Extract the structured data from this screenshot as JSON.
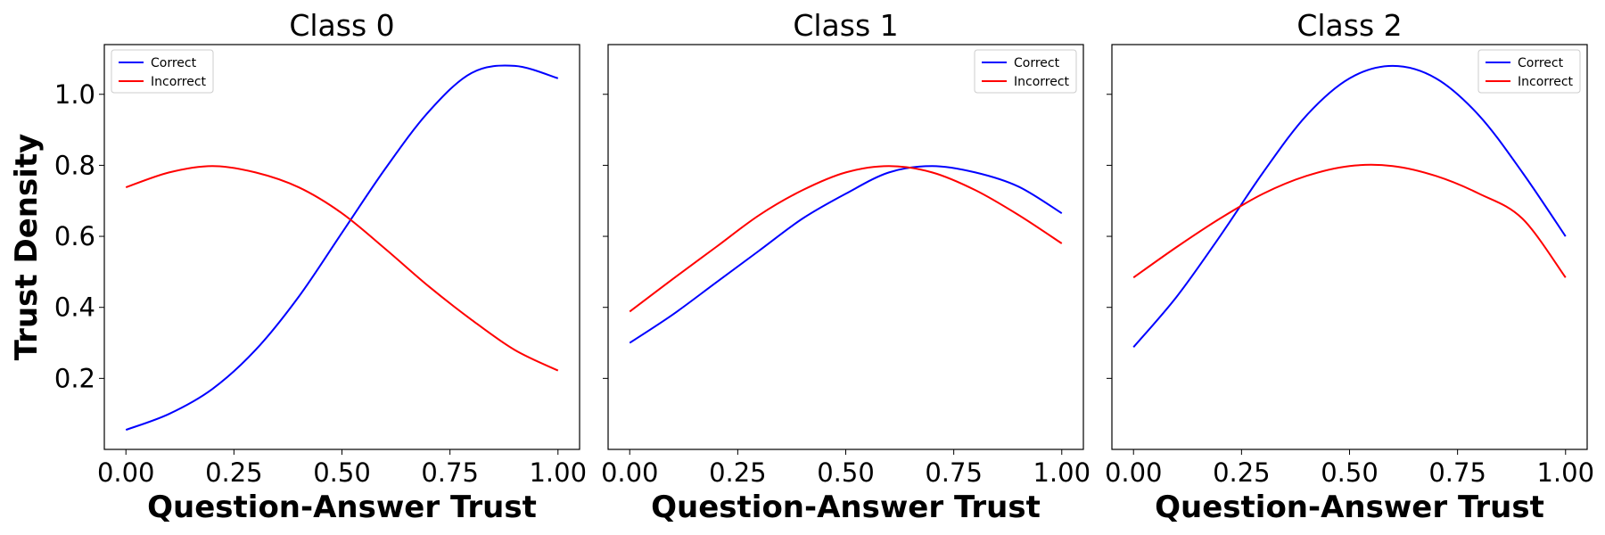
{
  "ylabel": "Trust Density",
  "colors": {
    "correct": "#0000ff",
    "incorrect": "#ff0000"
  },
  "chart_data": [
    {
      "type": "line",
      "title": "Class 0",
      "xlabel": "Question-Answer Trust",
      "xlim": [
        -0.05,
        1.05
      ],
      "ylim": [
        0.0,
        1.14
      ],
      "xticks": [
        "0.00",
        "0.25",
        "0.50",
        "0.75",
        "1.00"
      ],
      "yticks": [
        "0.2",
        "0.4",
        "0.6",
        "0.8",
        "1.0"
      ],
      "legend": "top-left",
      "x": [
        0.0,
        0.1,
        0.2,
        0.3,
        0.4,
        0.5,
        0.6,
        0.7,
        0.8,
        0.9,
        1.0
      ],
      "series": [
        {
          "name": "Correct",
          "color": "#0000ff",
          "values": [
            0.055,
            0.1,
            0.17,
            0.28,
            0.43,
            0.61,
            0.79,
            0.95,
            1.06,
            1.08,
            1.045
          ]
        },
        {
          "name": "Incorrect",
          "color": "#ff0000",
          "values": [
            0.738,
            0.78,
            0.798,
            0.78,
            0.738,
            0.665,
            0.565,
            0.46,
            0.365,
            0.28,
            0.222
          ]
        }
      ]
    },
    {
      "type": "line",
      "title": "Class 1",
      "xlabel": "Question-Answer Trust",
      "xlim": [
        -0.05,
        1.05
      ],
      "ylim": [
        0.0,
        1.14
      ],
      "xticks": [
        "0.00",
        "0.25",
        "0.50",
        "0.75",
        "1.00"
      ],
      "yticks": [
        "0.2",
        "0.4",
        "0.6",
        "0.8",
        "1.0"
      ],
      "legend": "top-right",
      "x": [
        0.0,
        0.1,
        0.2,
        0.3,
        0.4,
        0.5,
        0.6,
        0.7,
        0.8,
        0.9,
        1.0
      ],
      "series": [
        {
          "name": "Correct",
          "color": "#0000ff",
          "values": [
            0.3,
            0.38,
            0.47,
            0.56,
            0.65,
            0.72,
            0.78,
            0.798,
            0.78,
            0.74,
            0.665
          ]
        },
        {
          "name": "Incorrect",
          "color": "#ff0000",
          "values": [
            0.388,
            0.48,
            0.57,
            0.66,
            0.73,
            0.78,
            0.798,
            0.78,
            0.73,
            0.66,
            0.58
          ]
        }
      ]
    },
    {
      "type": "line",
      "title": "Class 2",
      "xlabel": "Question-Answer Trust",
      "xlim": [
        -0.05,
        1.05
      ],
      "ylim": [
        0.0,
        1.14
      ],
      "xticks": [
        "0.00",
        "0.25",
        "0.50",
        "0.75",
        "1.00"
      ],
      "yticks": [
        "0.2",
        "0.4",
        "0.6",
        "0.8",
        "1.0"
      ],
      "legend": "top-right",
      "x": [
        0.0,
        0.1,
        0.2,
        0.3,
        0.4,
        0.5,
        0.6,
        0.7,
        0.8,
        0.9,
        1.0
      ],
      "series": [
        {
          "name": "Correct",
          "color": "#0000ff",
          "values": [
            0.288,
            0.43,
            0.6,
            0.78,
            0.94,
            1.045,
            1.08,
            1.045,
            0.94,
            0.78,
            0.6
          ]
        },
        {
          "name": "Incorrect",
          "color": "#ff0000",
          "values": [
            0.484,
            0.57,
            0.65,
            0.72,
            0.77,
            0.798,
            0.798,
            0.77,
            0.72,
            0.65,
            0.484
          ]
        }
      ]
    }
  ]
}
